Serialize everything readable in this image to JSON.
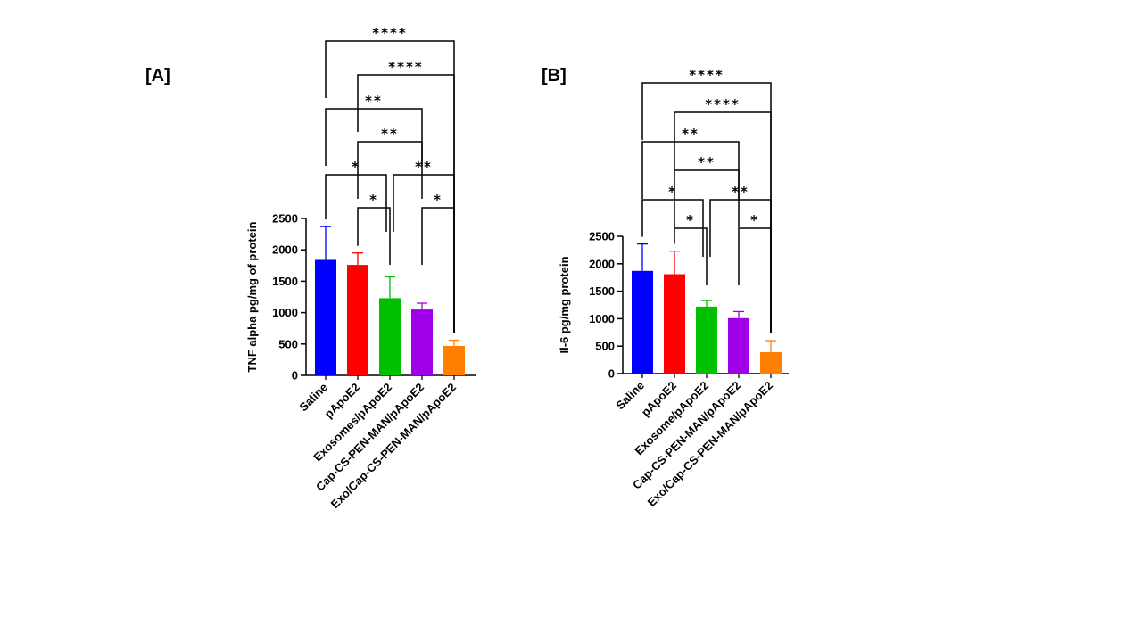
{
  "chart_data": [
    {
      "panel": "[A]",
      "type": "bar",
      "ylabel": "TNF alpha pg/mg of protein",
      "ylim": [
        0,
        2500
      ],
      "yticks": [
        "0",
        "500",
        "1000",
        "1500",
        "2000",
        "2500"
      ],
      "categories": [
        "Saline",
        "pApoE2",
        "Exosomes/pApoE2",
        "Cap-CS-PEN-MAN/pApoE2",
        "Exo/Cap-CS-PEN-MAN/pApoE2"
      ],
      "values": [
        1840,
        1760,
        1230,
        1050,
        470
      ],
      "errors": [
        530,
        190,
        340,
        100,
        90
      ],
      "colors": [
        "#0000ff",
        "#ff0000",
        "#00c000",
        "#a000e8",
        "#ff8000"
      ],
      "significance": [
        {
          "from": 0,
          "to": 4,
          "label": "****"
        },
        {
          "from": 1,
          "to": 4,
          "label": "****"
        },
        {
          "from": 0,
          "to": 3,
          "label": "**"
        },
        {
          "from": 1,
          "to": 3,
          "label": "**"
        },
        {
          "from": 0,
          "to": 2,
          "label": "*"
        },
        {
          "from": 2,
          "to": 4,
          "label": "**"
        },
        {
          "from": 1,
          "to": 2,
          "label": "*"
        },
        {
          "from": 3,
          "to": 4,
          "label": "*"
        }
      ]
    },
    {
      "panel": "[B]",
      "type": "bar",
      "ylabel": "Il-6 pg/mg protein",
      "ylim": [
        0,
        2500
      ],
      "yticks": [
        "0",
        "500",
        "1000",
        "1500",
        "2000",
        "2500"
      ],
      "categories": [
        "Saline",
        "pApoE2",
        "Exosome/pApoE2",
        "Cap-CS-PEN-MAN/pApoE2",
        "Exo/Cap-CS-PEN-MAN/pApoE2"
      ],
      "values": [
        1870,
        1810,
        1220,
        1010,
        390
      ],
      "errors": [
        490,
        420,
        110,
        120,
        210
      ],
      "colors": [
        "#0000ff",
        "#ff0000",
        "#00c000",
        "#a000e8",
        "#ff8000"
      ],
      "significance": [
        {
          "from": 0,
          "to": 4,
          "label": "****"
        },
        {
          "from": 1,
          "to": 4,
          "label": "****"
        },
        {
          "from": 0,
          "to": 3,
          "label": "**"
        },
        {
          "from": 1,
          "to": 3,
          "label": "**"
        },
        {
          "from": 0,
          "to": 2,
          "label": "*"
        },
        {
          "from": 2,
          "to": 4,
          "label": "**"
        },
        {
          "from": 1,
          "to": 2,
          "label": "*"
        },
        {
          "from": 3,
          "to": 4,
          "label": "*"
        }
      ]
    }
  ]
}
